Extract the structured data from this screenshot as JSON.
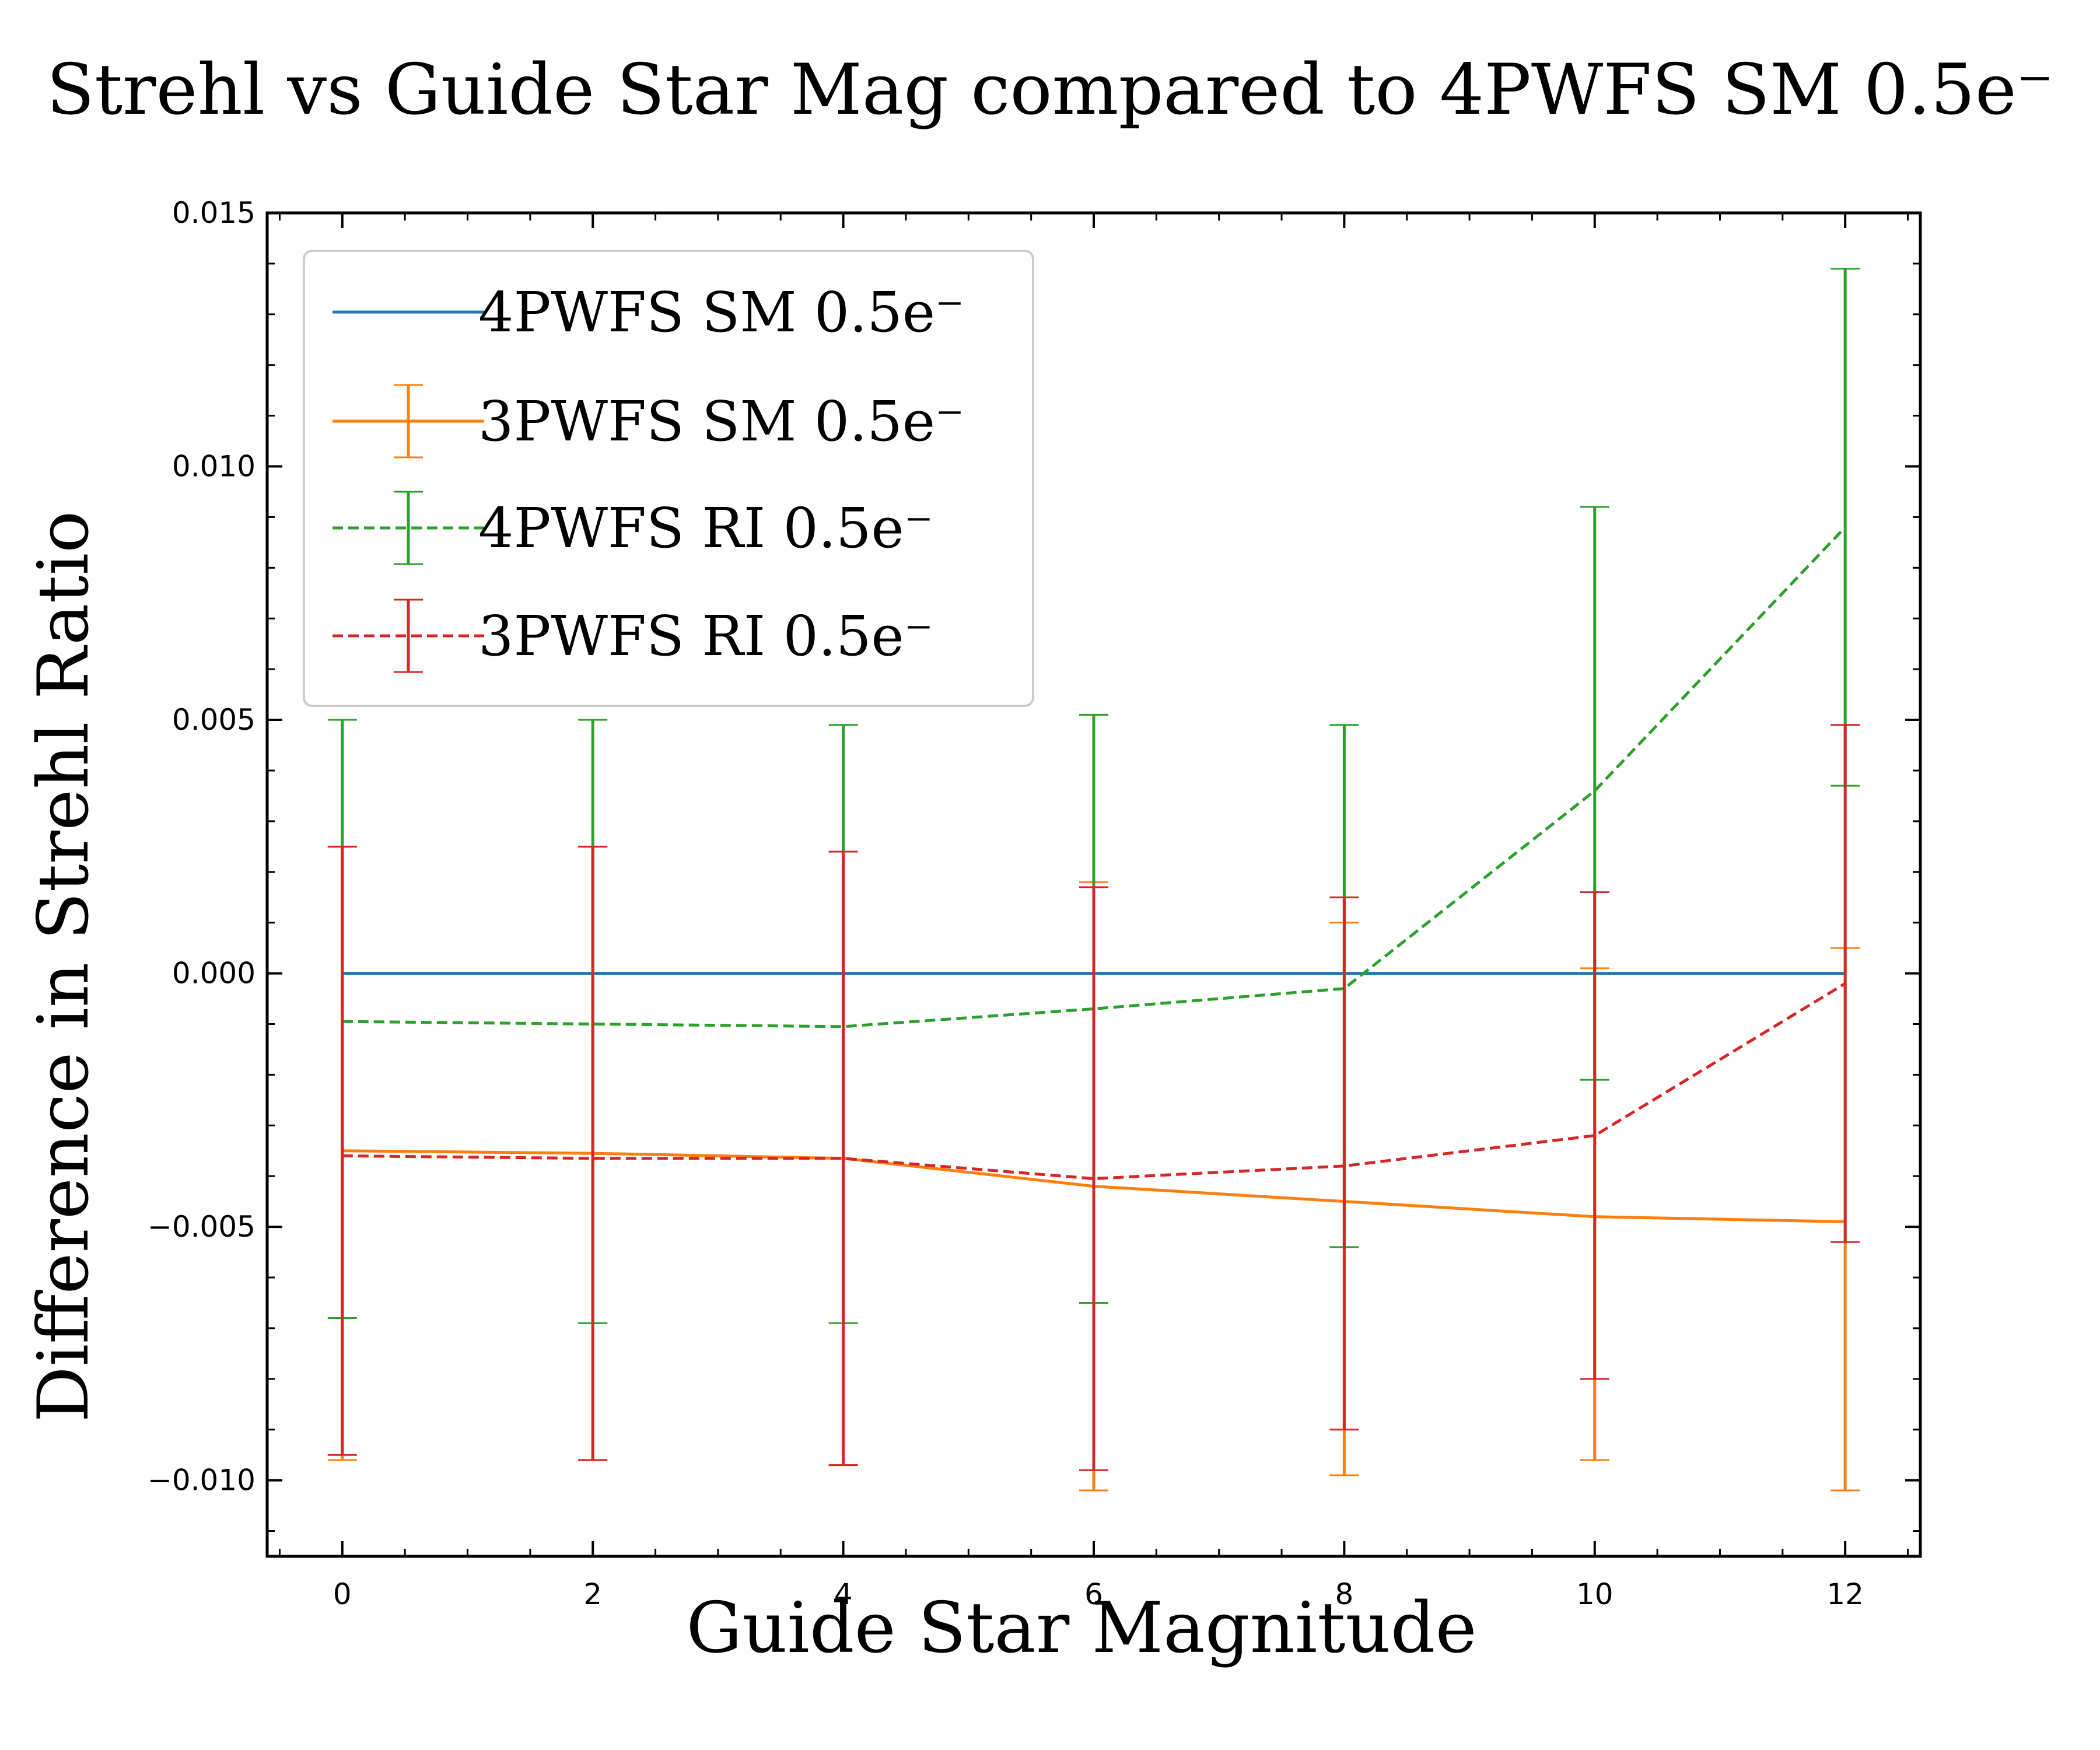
{
  "chart_data": {
    "type": "line",
    "title": "Strehl vs Guide Star Mag compared to 4PWFS SM 0.5e⁻",
    "xlabel": "Guide Star Magnitude",
    "ylabel": "Difference in Strehl Ratio",
    "xlim": [
      -0.6,
      12.6
    ],
    "ylim": [
      -0.0115,
      0.015
    ],
    "x_ticks": [
      0,
      2,
      4,
      6,
      8,
      10,
      12
    ],
    "y_ticks": [
      -0.01,
      -0.005,
      0.0,
      0.005,
      0.01,
      0.015
    ],
    "x_tick_labels": [
      "0",
      "2",
      "4",
      "6",
      "8",
      "10",
      "12"
    ],
    "y_tick_labels": [
      "−0.010",
      "−0.005",
      "0.000",
      "0.005",
      "0.010",
      "0.015"
    ],
    "grid": false,
    "legend_position": "upper-left",
    "x": [
      0,
      2,
      4,
      6,
      8,
      10,
      12
    ],
    "series": [
      {
        "name": "4PWFS SM 0.5e⁻",
        "color": "#1f77b4",
        "style": "solid",
        "errorbars": false,
        "values": [
          0,
          0,
          0,
          0,
          0,
          0,
          0
        ],
        "lower": [],
        "upper": []
      },
      {
        "name": "3PWFS SM 0.5e⁻",
        "color": "#ff7f0e",
        "style": "solid",
        "errorbars": true,
        "values": [
          -0.0035,
          -0.00355,
          -0.00365,
          -0.0042,
          -0.0045,
          -0.0048,
          -0.0049
        ],
        "lower": [
          -0.0096,
          -0.0096,
          -0.0097,
          -0.0102,
          -0.0099,
          -0.0096,
          -0.0102
        ],
        "upper": [
          0.0025,
          0.0025,
          0.0024,
          0.0018,
          0.001,
          0.0001,
          0.0005
        ]
      },
      {
        "name": "4PWFS RI 0.5e⁻",
        "color": "#2ca02c",
        "style": "dashed",
        "errorbars": true,
        "values": [
          -0.00095,
          -0.001,
          -0.00105,
          -0.0007,
          -0.0003,
          0.0036,
          0.0088
        ],
        "lower": [
          -0.0068,
          -0.0069,
          -0.0069,
          -0.0065,
          -0.0054,
          -0.0021,
          0.0037
        ],
        "upper": [
          0.005,
          0.005,
          0.0049,
          0.0051,
          0.0049,
          0.0092,
          0.0139
        ]
      },
      {
        "name": "3PWFS RI 0.5e⁻",
        "color": "#d62728",
        "style": "dashed",
        "errorbars": true,
        "values": [
          -0.0036,
          -0.00365,
          -0.00365,
          -0.00405,
          -0.0038,
          -0.0032,
          -0.0002
        ],
        "lower": [
          -0.0095,
          -0.0096,
          -0.0097,
          -0.0098,
          -0.009,
          -0.008,
          -0.0053
        ],
        "upper": [
          0.0025,
          0.0025,
          0.0024,
          0.0017,
          0.0015,
          0.0016,
          0.0049
        ]
      }
    ]
  }
}
